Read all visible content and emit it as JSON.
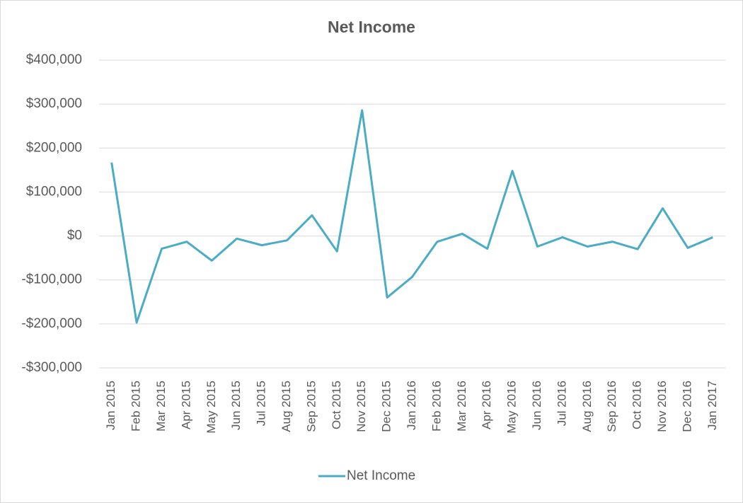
{
  "chart_data": {
    "type": "line",
    "title": "Net Income",
    "categories": [
      "Jan 2015",
      "Feb 2015",
      "Mar 2015",
      "Apr 2015",
      "May 2015",
      "Jun 2015",
      "Jul 2015",
      "Aug 2015",
      "Sep 2015",
      "Oct 2015",
      "Nov 2015",
      "Dec 2015",
      "Jan 2016",
      "Feb 2016",
      "Mar 2016",
      "Apr 2016",
      "May 2016",
      "Jun 2016",
      "Jul 2016",
      "Aug 2016",
      "Sep 2016",
      "Oct 2016",
      "Nov 2016",
      "Dec 2016",
      "Jan 2017"
    ],
    "series": [
      {
        "name": "Net Income",
        "color": "#4bacc6",
        "values": [
          167000,
          -197000,
          -29000,
          -13000,
          -56000,
          -6000,
          -21000,
          -10000,
          47000,
          -35000,
          286000,
          -140000,
          -93000,
          -13000,
          5000,
          -29000,
          148000,
          -24000,
          -3000,
          -24000,
          -13000,
          -30000,
          63000,
          -27000,
          -3000
        ]
      }
    ],
    "ylim": [
      -300000,
      400000
    ],
    "yticks": [
      {
        "value": -300000,
        "label": "-$300,000"
      },
      {
        "value": -200000,
        "label": "-$200,000"
      },
      {
        "value": -100000,
        "label": "-$100,000"
      },
      {
        "value": 0,
        "label": "$0"
      },
      {
        "value": 100000,
        "label": "$100,000"
      },
      {
        "value": 200000,
        "label": "$200,000"
      },
      {
        "value": 300000,
        "label": "$300,000"
      },
      {
        "value": 400000,
        "label": "$400,000"
      }
    ],
    "grid": true,
    "legend": "bottom"
  }
}
